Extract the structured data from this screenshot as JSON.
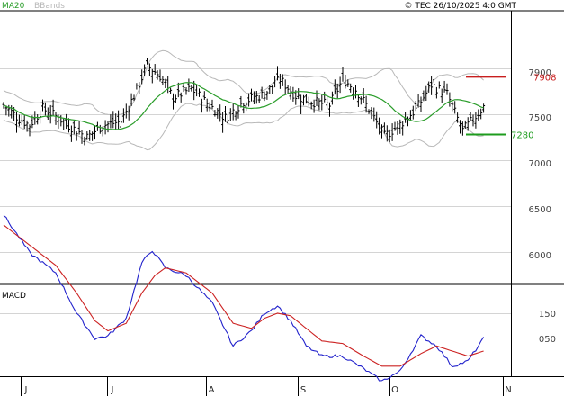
{
  "header": {
    "ma_label": "MA20",
    "bb_label": "BBands",
    "copyright": "© TEC 26/10/2025 4:0 GMT"
  },
  "colors": {
    "background": "#ffffff",
    "grid": "#d4d4d4",
    "price_bars": "#000000",
    "ma": "#2a9d2a",
    "bbands": "#b8b8b8",
    "resistance": "#c81e1e",
    "support": "#1e9c1e",
    "macd": "#2222cc",
    "signal": "#cc2222"
  },
  "price_panel": {
    "y_ticks": [
      "7900",
      "7500",
      "7000",
      "6500",
      "6000"
    ],
    "resistance_label": "7908",
    "support_label": "7280"
  },
  "macd_panel": {
    "title": "MACD",
    "y_ticks": [
      "150",
      "050"
    ]
  },
  "x_axis": {
    "ticks": [
      "J",
      "J",
      "A",
      "S",
      "O",
      "N"
    ]
  },
  "chart_data": [
    {
      "type": "ohlc",
      "series": [
        {
          "name": "MA20"
        },
        {
          "name": "BBands"
        }
      ],
      "yrange": [
        5700,
        8500
      ],
      "resistance": 7908,
      "support": 7280,
      "close_anchors": [
        [
          0,
          7600
        ],
        [
          6,
          7450
        ],
        [
          10,
          7380
        ],
        [
          15,
          7560
        ],
        [
          20,
          7480
        ],
        [
          26,
          7360
        ],
        [
          32,
          7250
        ],
        [
          38,
          7380
        ],
        [
          45,
          7420
        ],
        [
          50,
          7700
        ],
        [
          55,
          8030
        ],
        [
          60,
          7920
        ],
        [
          65,
          7680
        ],
        [
          72,
          7780
        ],
        [
          78,
          7620
        ],
        [
          85,
          7460
        ],
        [
          92,
          7640
        ],
        [
          100,
          7720
        ],
        [
          106,
          7880
        ],
        [
          112,
          7700
        ],
        [
          118,
          7640
        ],
        [
          125,
          7600
        ],
        [
          130,
          7880
        ],
        [
          135,
          7770
        ],
        [
          140,
          7560
        ],
        [
          146,
          7260
        ],
        [
          152,
          7390
        ],
        [
          158,
          7550
        ],
        [
          164,
          7820
        ],
        [
          170,
          7720
        ],
        [
          176,
          7320
        ],
        [
          182,
          7510
        ],
        [
          184,
          7580
        ]
      ],
      "macd_range": [
        -150,
        600
      ],
      "macd_anchors": [
        [
          0,
          540
        ],
        [
          10,
          390
        ],
        [
          20,
          310
        ],
        [
          28,
          150
        ],
        [
          35,
          50
        ],
        [
          40,
          60
        ],
        [
          47,
          130
        ],
        [
          53,
          350
        ],
        [
          57,
          400
        ],
        [
          62,
          330
        ],
        [
          70,
          300
        ],
        [
          80,
          190
        ],
        [
          88,
          20
        ],
        [
          95,
          80
        ],
        [
          100,
          150
        ],
        [
          105,
          180
        ],
        [
          110,
          120
        ],
        [
          116,
          20
        ],
        [
          122,
          -20
        ],
        [
          130,
          -20
        ],
        [
          138,
          -70
        ],
        [
          145,
          -120
        ],
        [
          152,
          -80
        ],
        [
          160,
          60
        ],
        [
          166,
          20
        ],
        [
          172,
          -60
        ],
        [
          178,
          -40
        ],
        [
          184,
          50
        ]
      ],
      "signal_anchors": [
        [
          0,
          500
        ],
        [
          10,
          420
        ],
        [
          20,
          340
        ],
        [
          28,
          230
        ],
        [
          35,
          120
        ],
        [
          40,
          80
        ],
        [
          47,
          110
        ],
        [
          53,
          230
        ],
        [
          58,
          300
        ],
        [
          62,
          330
        ],
        [
          70,
          310
        ],
        [
          80,
          230
        ],
        [
          88,
          110
        ],
        [
          95,
          90
        ],
        [
          100,
          130
        ],
        [
          105,
          150
        ],
        [
          110,
          140
        ],
        [
          116,
          90
        ],
        [
          122,
          40
        ],
        [
          130,
          30
        ],
        [
          138,
          -20
        ],
        [
          145,
          -60
        ],
        [
          152,
          -60
        ],
        [
          160,
          -10
        ],
        [
          166,
          20
        ],
        [
          172,
          0
        ],
        [
          178,
          -20
        ],
        [
          184,
          0
        ]
      ]
    }
  ]
}
